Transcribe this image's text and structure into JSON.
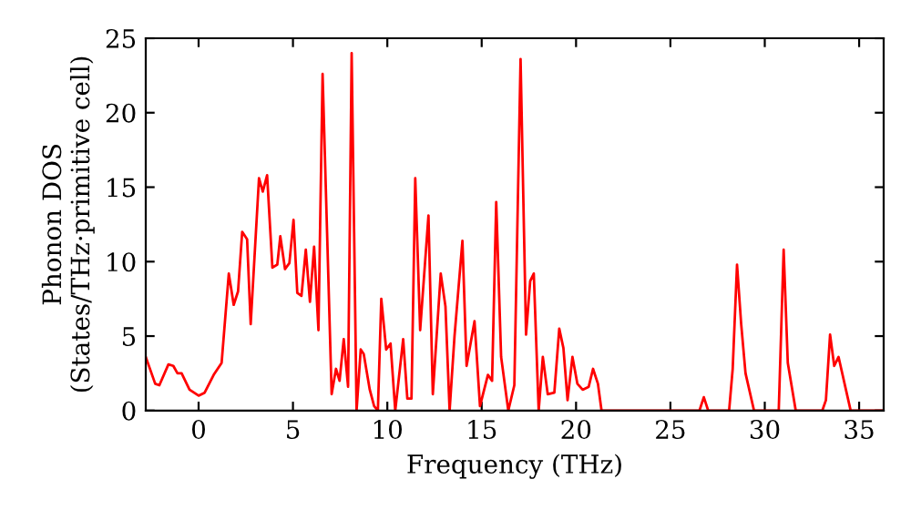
{
  "chart_data": {
    "type": "line",
    "xlabel": "Frequency (THz)",
    "ylabel": "Phonon DOS\n(States/THz·primitive cell)",
    "xlim": [
      -2.8,
      36.3
    ],
    "ylim": [
      0,
      25
    ],
    "xticks": [
      0,
      5,
      10,
      15,
      20,
      25,
      30,
      35
    ],
    "yticks": [
      0,
      5,
      10,
      15,
      20,
      25
    ],
    "grid": false,
    "legend": false,
    "marker": "none",
    "line_style": "solid",
    "series": [
      {
        "color": "#ff0000",
        "x": [
          -2.8,
          -2.3,
          -2.08,
          -1.6,
          -1.34,
          -1.12,
          -0.9,
          -0.48,
          0,
          0.32,
          0.8,
          1.22,
          1.6,
          1.86,
          2.09,
          2.31,
          2.57,
          2.76,
          3.2,
          3.4,
          3.63,
          3.91,
          4.17,
          4.33,
          4.58,
          4.81,
          5.03,
          5.23,
          5.45,
          5.68,
          5.9,
          6.12,
          6.35,
          6.57,
          7.05,
          7.28,
          7.47,
          7.69,
          7.92,
          8.11,
          8.37,
          8.59,
          8.75,
          9.07,
          9.3,
          9.5,
          9.68,
          9.94,
          10.17,
          10.42,
          10.84,
          11.06,
          11.28,
          11.48,
          11.74,
          12.18,
          12.41,
          12.83,
          13.08,
          13.3,
          13.56,
          13.98,
          14.2,
          14.62,
          14.91,
          15.33,
          15.55,
          15.77,
          16.03,
          16.41,
          16.73,
          17.06,
          17.35,
          17.57,
          17.76,
          18.02,
          18.24,
          18.5,
          18.85,
          19.11,
          19.33,
          19.55,
          19.81,
          20.07,
          20.35,
          20.67,
          20.9,
          21.16,
          21.35,
          26.54,
          26.77,
          27.0,
          28.11,
          28.3,
          28.53,
          28.75,
          28.98,
          29.43,
          30.74,
          31.0,
          31.22,
          31.64,
          33.05,
          33.24,
          33.46,
          33.68,
          33.91,
          34.3,
          34.55,
          36.3
        ],
        "values": [
          3.6,
          1.8,
          1.7,
          3.1,
          3.0,
          2.5,
          2.5,
          1.4,
          1.0,
          1.2,
          2.4,
          3.2,
          9.2,
          7.1,
          8.0,
          12.0,
          11.5,
          5.8,
          15.6,
          14.7,
          15.8,
          9.6,
          9.8,
          11.7,
          9.5,
          9.9,
          12.8,
          7.9,
          7.7,
          10.8,
          7.3,
          11.0,
          5.4,
          22.6,
          1.1,
          2.8,
          2.0,
          4.8,
          1.6,
          24.0,
          0,
          4.1,
          3.8,
          1.4,
          0.3,
          0,
          7.5,
          4.1,
          4.5,
          0,
          4.8,
          0.8,
          0.8,
          15.6,
          5.4,
          13.1,
          1.1,
          9.2,
          7.0,
          0,
          5.0,
          11.4,
          3.0,
          6.0,
          0.3,
          2.4,
          2.0,
          14.0,
          3.6,
          0,
          1.7,
          23.6,
          5.1,
          8.7,
          9.2,
          0,
          3.6,
          1.1,
          1.2,
          5.5,
          4.2,
          0.7,
          3.6,
          1.8,
          1.4,
          1.6,
          2.8,
          1.8,
          0,
          0,
          0.9,
          0,
          0,
          2.8,
          9.8,
          5.8,
          2.5,
          0,
          0,
          10.8,
          3.2,
          0,
          0,
          0.7,
          5.1,
          3.0,
          3.6,
          1.4,
          0,
          0
        ]
      }
    ]
  }
}
